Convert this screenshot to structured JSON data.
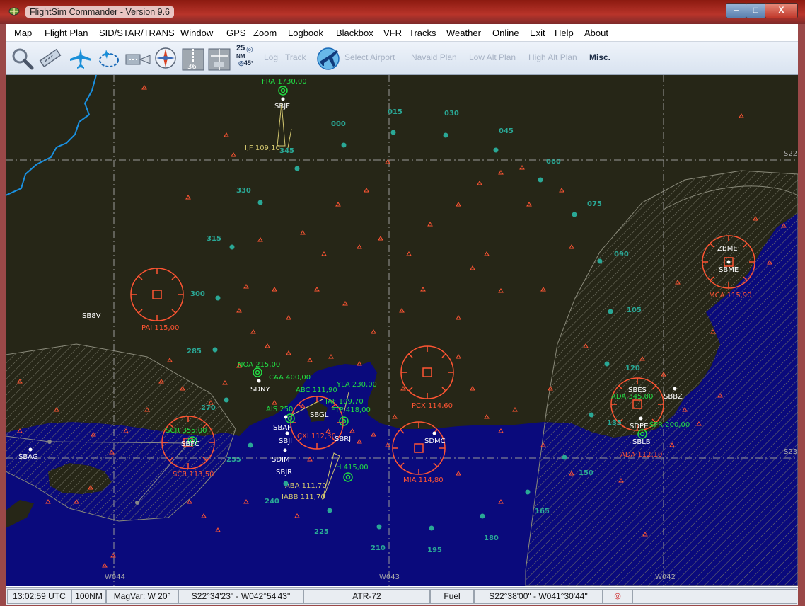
{
  "window": {
    "title": "FlightSim Commander  - Version 9.6",
    "min_label": "–",
    "max_label": "□",
    "close_label": "X"
  },
  "menu": [
    "Map",
    "Flight Plan",
    "SID/STAR/TRANS",
    "Window",
    "GPS",
    "Zoom",
    "Logbook",
    "Blackbox",
    "VFR",
    "Tracks",
    "Weather",
    "Online",
    "Exit",
    "Help",
    "About"
  ],
  "toolbar": {
    "icons": [
      "search-map-icon",
      "ruler-icon",
      "airplane-icon",
      "route-loop-icon",
      "runway-icon",
      "compass-rose-icon",
      "runway-36-icon",
      "ils-icon"
    ],
    "range_top": "25",
    "range_unit": "NM",
    "range_angle": "45°",
    "log_label": "Log",
    "track_label": "Track",
    "select_airport": "Select Airport",
    "navaid_plan": "Navaid Plan",
    "low_alt_plan": "Low Alt Plan",
    "high_alt_plan": "High Alt Plan",
    "misc": "Misc."
  },
  "map": {
    "colors": {
      "land": "#262617",
      "sea": "#0a0a7c",
      "hatch": "#7a7a6a",
      "coast": "#1a90e0",
      "vor": "#ff5533",
      "ndb": "#22dd44",
      "fix": "#2aa896",
      "airport": "#ffffff",
      "grid": "#999999",
      "ils": "#d4c870"
    },
    "grid_labels": {
      "w044": "W044",
      "w043": "W043",
      "w042": "W042",
      "s22": "S22",
      "s23": "S23"
    },
    "vors": [
      {
        "id": "pai",
        "label": "PAI 115,00"
      },
      {
        "id": "scr",
        "label": "SCR 113,50"
      },
      {
        "id": "pcx",
        "label": "PCX 114,60"
      },
      {
        "id": "mia",
        "label": "MIA 114,80"
      },
      {
        "id": "ada",
        "label": "ADA 112,10"
      },
      {
        "id": "mca",
        "label": "MCA 115,90"
      },
      {
        "id": "vor-rio",
        "label": "CXI 112,30"
      }
    ],
    "ndbs": [
      {
        "id": "fra",
        "label": "FRA 1730,00"
      },
      {
        "id": "noa",
        "label": "NOA 215,00"
      },
      {
        "id": "caa",
        "label": "CAA 400,00"
      },
      {
        "id": "abc",
        "label": "ABC 111,90"
      },
      {
        "id": "yla",
        "label": "YLA 230,00"
      },
      {
        "id": "iaf",
        "label": "IAF 109,70"
      },
      {
        "id": "ftp",
        "label": "FTP 418,00"
      },
      {
        "id": "scr-ndb",
        "label": "SCR 355,00"
      },
      {
        "id": "iih",
        "label": "IH 415,00"
      },
      {
        "id": "ada-ndb",
        "label": "ADA 345,00"
      },
      {
        "id": "sfr",
        "label": "SFR 200,00"
      },
      {
        "id": "ais",
        "label": "AIS 250"
      }
    ],
    "ils": [
      "IJF 109,10",
      "IABA 111,70",
      "IABB 111,70"
    ],
    "airports": [
      "SBJF",
      "SB8V",
      "SDNY",
      "SBAF",
      "SBGL",
      "SBRJ",
      "SBJR",
      "SDIM",
      "SBJI",
      "SBFC",
      "SBAG",
      "SDMC",
      "SBES",
      "SDPE",
      "SBLB",
      "SBBZ",
      "SBME",
      "ZBME"
    ],
    "fixes": [
      "000",
      "015",
      "030",
      "045",
      "060",
      "075",
      "090",
      "105",
      "120",
      "135",
      "150",
      "165",
      "180",
      "195",
      "210",
      "225",
      "240",
      "255",
      "270",
      "285",
      "300",
      "315",
      "330",
      "345"
    ]
  },
  "status": {
    "time": "13:02:59 UTC",
    "range": "100NM",
    "magvar": "MagVar: W 20°",
    "cursor": "S22°34'23\" - W042°54'43\"",
    "aircraft": "ATR-72",
    "fuel": "Fuel",
    "position": "S22°38'00\" - W041°30'44\""
  }
}
